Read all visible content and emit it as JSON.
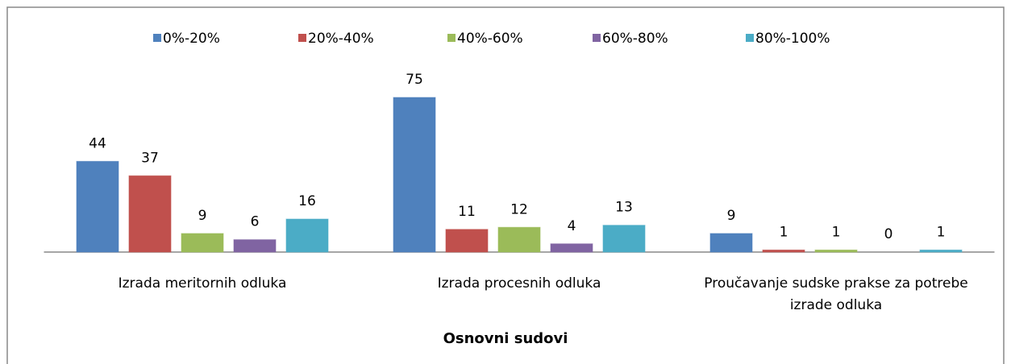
{
  "chart_data": {
    "type": "bar",
    "categories": [
      "Izrada meritornih odluka",
      "Izrada procesnih odluka",
      "Proučavanje sudske prakse za potrebe izrade odluka"
    ],
    "series": [
      {
        "name": "0%-20%",
        "color": "#4f81bd",
        "values": [
          44,
          75,
          9
        ]
      },
      {
        "name": "20%-40%",
        "color": "#c0504d",
        "values": [
          37,
          11,
          1
        ]
      },
      {
        "name": "40%-60%",
        "color": "#9bbb59",
        "values": [
          9,
          12,
          1
        ]
      },
      {
        "name": "60%-80%",
        "color": "#8064a2",
        "values": [
          6,
          4,
          0
        ]
      },
      {
        "name": "80%-100%",
        "color": "#4bacc6",
        "values": [
          16,
          13,
          1
        ]
      }
    ],
    "x_label": "Osnovni sudovi",
    "legend": "top"
  }
}
